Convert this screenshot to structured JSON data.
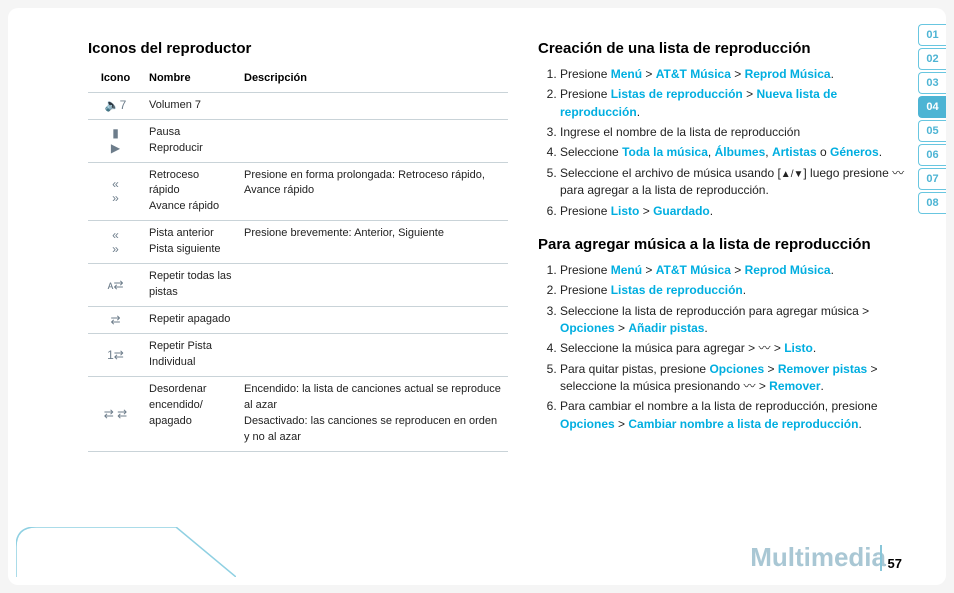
{
  "section_label": "Multimedia",
  "page_number": "57",
  "tabs": [
    "01",
    "02",
    "03",
    "04",
    "05",
    "06",
    "07",
    "08"
  ],
  "active_tab_index": 3,
  "left": {
    "heading": "Iconos del reproductor",
    "columns": [
      "Icono",
      "Nombre",
      "Descripción"
    ],
    "rows": [
      {
        "icon_glyph": "🔈7",
        "name": "Volumen 7",
        "desc": ""
      },
      {
        "icon_glyph": "▮\n▶",
        "name": "Pausa\nReproducir",
        "desc": ""
      },
      {
        "icon_glyph": "«\n»",
        "name": "Retroceso rápido\nAvance rápido",
        "desc": "Presione en forma prolongada: Retroceso rápido, Avance rápido"
      },
      {
        "icon_glyph": "«\n»",
        "name": "Pista anterior\nPista siguiente",
        "desc": "Presione brevemente: Anterior, Siguiente"
      },
      {
        "icon_glyph": "ᴀ⇄",
        "name": "Repetir todas las pistas",
        "desc": ""
      },
      {
        "icon_glyph": "⇄",
        "name": "Repetir apagado",
        "desc": ""
      },
      {
        "icon_glyph": "1⇄",
        "name": "Repetir Pista Individual",
        "desc": ""
      },
      {
        "icon_glyph": "⇄ ⇄",
        "name": "Desordenar encendido/ apagado",
        "desc": "Encendido: la lista de canciones actual se reproduce al azar\nDesactivado: las canciones se reproducen en orden y no al azar"
      }
    ]
  },
  "right": {
    "sec1_heading": "Creación de una lista de reproducción",
    "sec1": {
      "i1_a": "Presione",
      "i1_menu": "Menú",
      "i1_att": "AT&T Música",
      "i1_rep": "Reprod Música",
      "i1_dot": ".",
      "i2_a": "Presione",
      "i2_listas": "Listas de reproducción",
      "i2_nueva": "Nueva lista de reproducción",
      "i2_dot": ".",
      "i3": "Ingrese el nombre de la lista de reproducción",
      "i4_a": "Seleccione",
      "i4_toda": "Toda la música",
      "i4_comma1": ",",
      "i4_alb": "Álbumes",
      "i4_comma2": ",",
      "i4_art": "Artistas",
      "i4_o": "o",
      "i4_gen": "Géneros",
      "i4_dot": ".",
      "i5_a": "Seleccione el archivo de música usando [",
      "i5_b": "] luego presione",
      "i5_c": "para agregar a la lista de reproducción.",
      "i6_a": "Presione",
      "i6_listo": "Listo",
      "i6_guard": "Guardado",
      "i6_dot": "."
    },
    "sec2_heading": "Para agregar música a la lista de reproducción",
    "sec2": {
      "i1_a": "Presione",
      "i1_menu": "Menú",
      "i1_att": "AT&T Música",
      "i1_rep": "Reprod Música",
      "i1_dot": ".",
      "i2_a": "Presione",
      "i2_listas": "Listas de reproducción",
      "i2_dot": ".",
      "i3_a": "Seleccione la lista de reproducción para agregar música >",
      "i3_opc": "Opciones",
      "i3_add": "Añadir pistas",
      "i3_dot": ".",
      "i4_a": "Seleccione la música para agregar >",
      "i4_listo": "Listo",
      "i4_dot": ".",
      "i5_a": "Para quitar pistas, presione",
      "i5_opc": "Opciones",
      "i5_rem": "Remover pistas",
      "i5_b": "> seleccione la música presionando",
      "i5_rem2": "Remover",
      "i5_dot": ".",
      "i6_a": "Para cambiar el nombre a la lista de reproducción, presione",
      "i6_opc": "Opciones",
      "i6_camb": "Cambiar nombre a lista de reproducción",
      "i6_dot": "."
    }
  },
  "gt": ">",
  "updown": "▲/▼",
  "curvy": "〰"
}
